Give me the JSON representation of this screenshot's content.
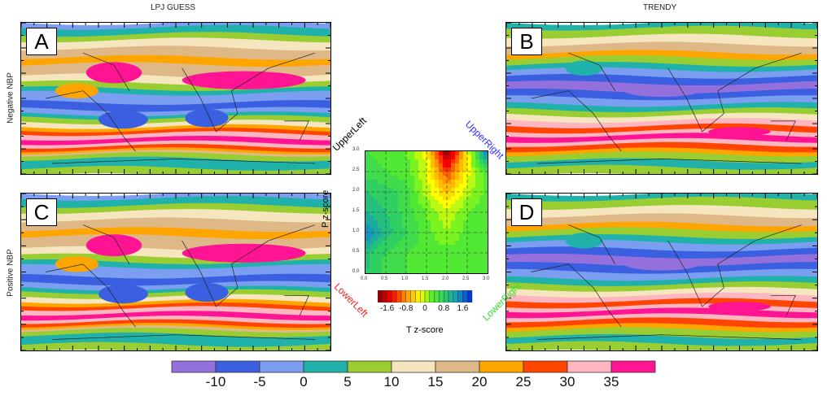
{
  "titles": {
    "left": "LPJ GUESS",
    "right": "TRENDY"
  },
  "row_labels": {
    "top": "Negative NBP",
    "bottom": "Positive NBP"
  },
  "panels": [
    {
      "letter": "A",
      "source": "LPJ GUESS",
      "nbp": "Negative NBP"
    },
    {
      "letter": "B",
      "source": "TRENDY",
      "nbp": "Negative NBP"
    },
    {
      "letter": "C",
      "source": "LPJ GUESS",
      "nbp": "Positive NBP"
    },
    {
      "letter": "D",
      "source": "TRENDY",
      "nbp": "Positive NBP"
    }
  ],
  "colorbar": {
    "colors": [
      "#9370db",
      "#3a5fe0",
      "#7b9ef0",
      "#20b2aa",
      "#9acd32",
      "#f5e6c0",
      "#deb887",
      "#ffa500",
      "#ff4500",
      "#ffb6c1",
      "#ff1493"
    ],
    "labels": [
      "-10",
      "-5",
      "0",
      "5",
      "10",
      "15",
      "20",
      "25",
      "30",
      "35"
    ]
  },
  "corners": {
    "upper_left": "UpperLeft",
    "upper_right": "UpperRight",
    "lower_left": "LowerLeft",
    "lower_right": "LowerRight"
  },
  "corner_colors": {
    "upper_left": "#000000",
    "upper_right": "#3030ff",
    "lower_left": "#ff2020",
    "lower_right": "#30e030"
  },
  "chart_data": {
    "type": "heatmap",
    "xlabel": "T z-score",
    "ylabel": "P z-score",
    "x": [
      0,
      0.5,
      1.0,
      1.5,
      2.0,
      2.5,
      3.0
    ],
    "y": [
      0,
      0.5,
      1.0,
      1.5,
      2.0,
      2.5,
      3.0
    ],
    "xticks": [
      "0.0",
      "0.5",
      "1.0",
      "1.5",
      "2.0",
      "2.5",
      "3.0"
    ],
    "yticks": [
      "0.0",
      "0.5",
      "1.0",
      "1.5",
      "2.0",
      "2.5",
      "3.0"
    ],
    "xlim": [
      0,
      3
    ],
    "ylim": [
      0,
      3
    ],
    "grid": true,
    "z": [
      [
        0.9,
        0.6,
        0.5,
        0.4,
        0.4,
        0.4,
        0.4
      ],
      [
        1.0,
        0.7,
        0.5,
        0.4,
        0.4,
        0.4,
        0.4
      ],
      [
        1.5,
        1.0,
        0.7,
        0.4,
        0.1,
        0.4,
        0.4
      ],
      [
        1.1,
        0.9,
        0.6,
        0.3,
        -0.1,
        0.3,
        0.4
      ],
      [
        0.9,
        0.8,
        0.6,
        0.0,
        -0.5,
        0.0,
        0.4
      ],
      [
        0.6,
        0.5,
        0.4,
        -0.1,
        -1.2,
        -0.2,
        0.5
      ],
      [
        0.5,
        0.4,
        0.3,
        -0.2,
        -2.0,
        -0.3,
        1.8
      ]
    ],
    "colorbar_range": [
      -2,
      2
    ],
    "colorbar_labels": [
      "-1.6",
      "-0.8",
      "0",
      "0.8",
      "1.6"
    ]
  }
}
